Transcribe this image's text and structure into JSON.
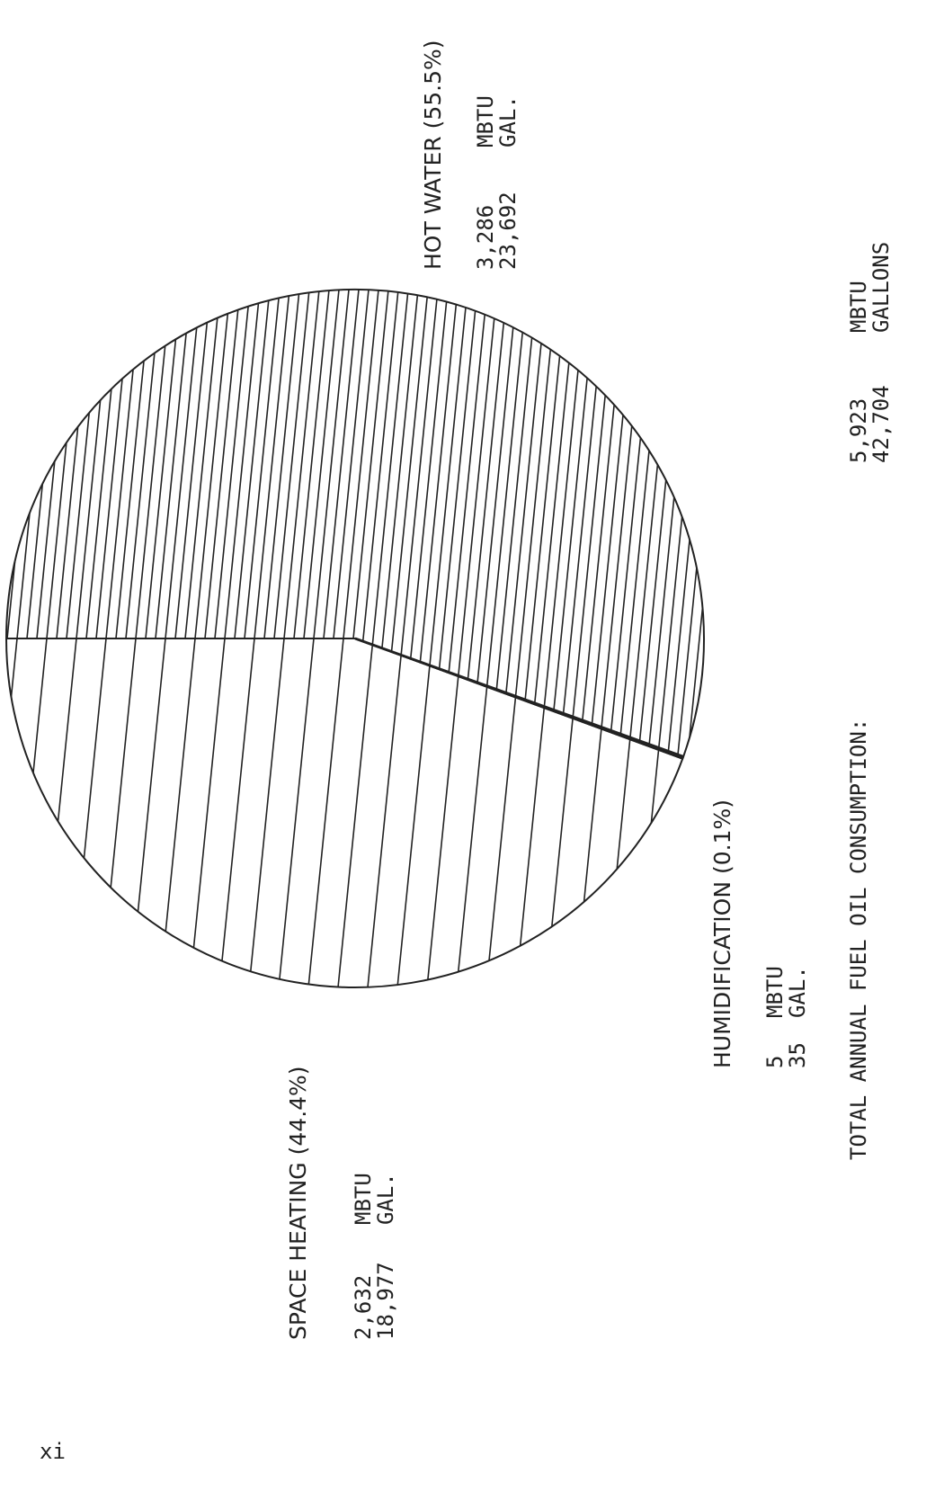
{
  "chart_data": {
    "type": "pie",
    "title": "",
    "orientation": "rotated 90° counter-clockwise",
    "fill_style": "monochrome line hatching",
    "slices": [
      {
        "label": "HOT WATER (55.5%)",
        "percent": 55.5,
        "mbtu": "3,286",
        "mbtu_unit": "MBTU",
        "gallons": "23,692",
        "gallons_unit": "GAL.",
        "hatch": "dense"
      },
      {
        "label": "SPACE HEATING (44.4%)",
        "percent": 44.4,
        "mbtu": "2,632",
        "mbtu_unit": "MBTU",
        "gallons": "18,977",
        "gallons_unit": "GAL.",
        "hatch": "sparse"
      },
      {
        "label": "HUMIDIFICATION (0.1%)",
        "percent": 0.1,
        "mbtu": "5",
        "mbtu_unit": "MBTU",
        "gallons": "35",
        "gallons_unit": "GAL.",
        "hatch": "none"
      }
    ],
    "total": {
      "label": "TOTAL ANNUAL FUEL OIL CONSUMPTION:",
      "mbtu": "5,923",
      "mbtu_unit": "MBTU",
      "gallons": "42,704",
      "gallons_unit": "GALLONS"
    }
  },
  "page": {
    "page_number": "xi"
  },
  "colors": {
    "ink": "#222222",
    "background": "#ffffff"
  }
}
